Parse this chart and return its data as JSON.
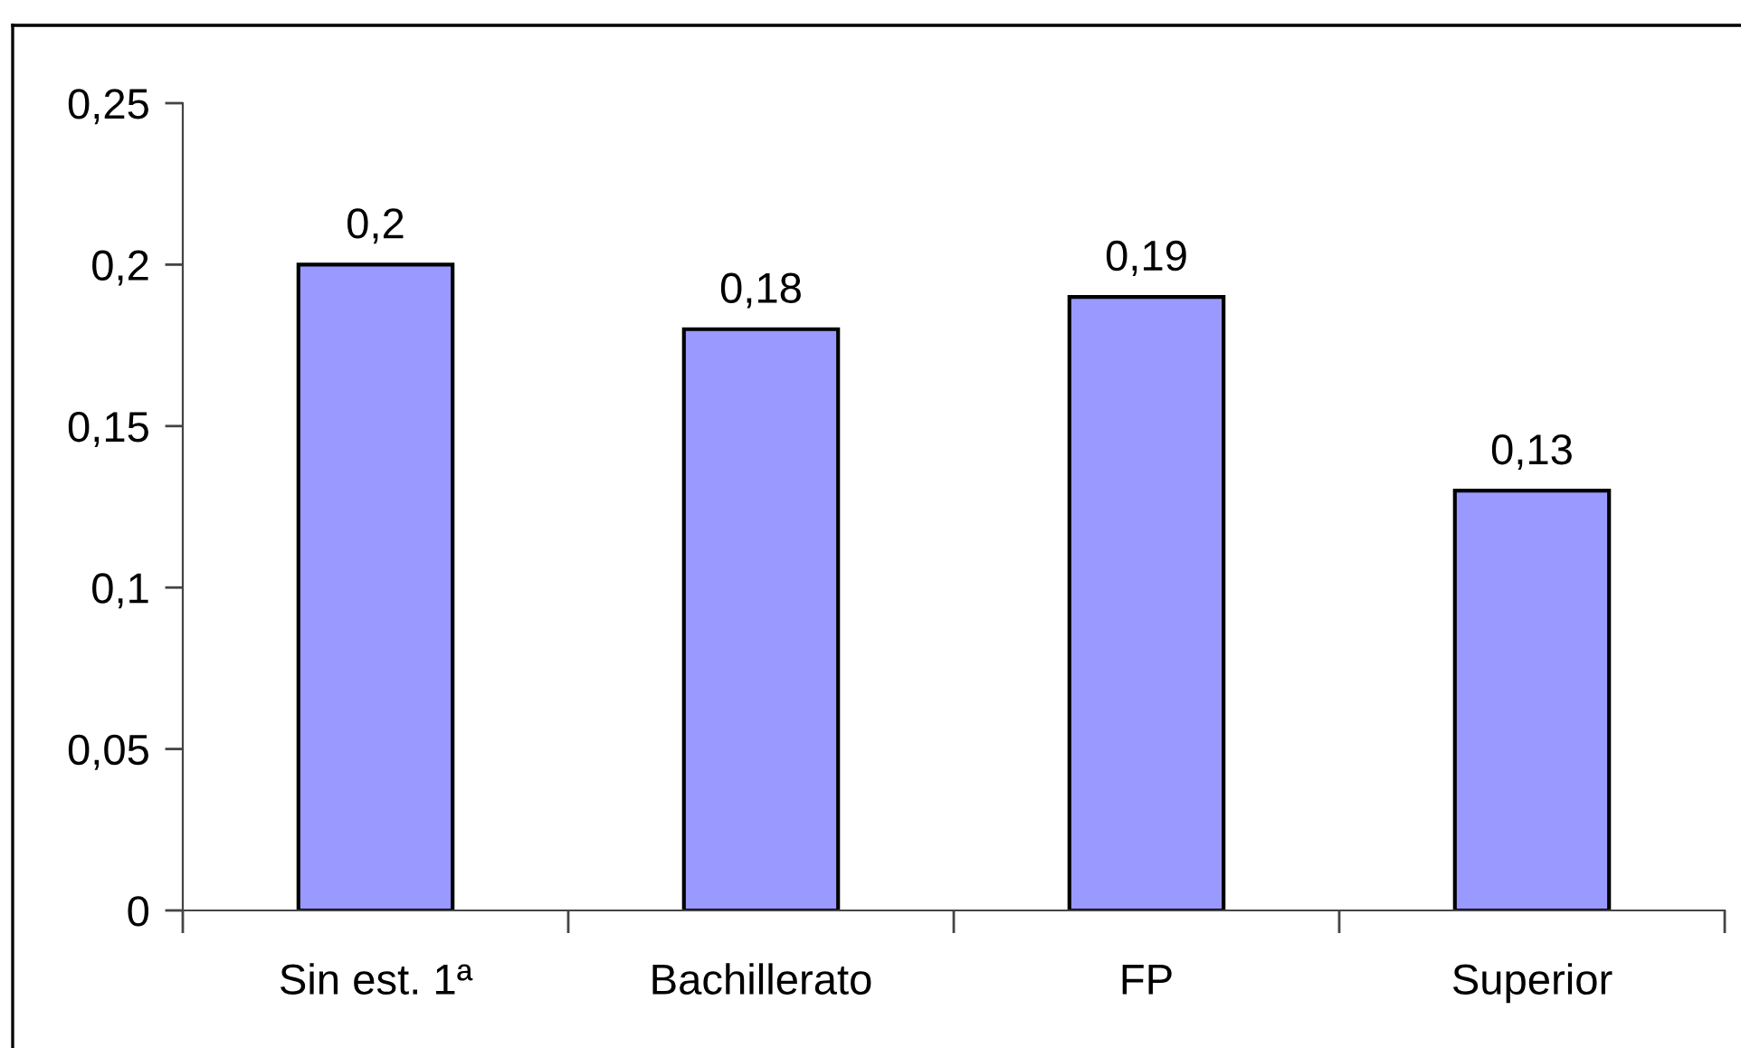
{
  "chart_data": {
    "type": "bar",
    "categories": [
      "Sin est. 1ª",
      "Bachillerato",
      "FP",
      "Superior"
    ],
    "values": [
      0.2,
      0.18,
      0.19,
      0.13
    ],
    "color": "#9999ff",
    "value_labels": [
      "0,2",
      "0,18",
      "0,19",
      "0,13"
    ],
    "ylim": [
      0,
      0.25
    ],
    "yticks": [
      0,
      {
        "value": 0.05,
        "label": "0,05"
      },
      {
        "value": 0.1,
        "label": "0,1"
      },
      {
        "value": 0.15,
        "label": "0,15"
      },
      {
        "value": 0.2,
        "label": "0,2"
      },
      {
        "value": 0.25,
        "label": "0,25"
      }
    ]
  }
}
